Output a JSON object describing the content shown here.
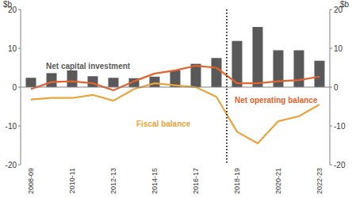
{
  "chart_data": {
    "type": "bar",
    "ylabel": "$b",
    "categories": [
      "2008-09",
      null,
      "2010-11",
      null,
      "2012-13",
      null,
      "2014-15",
      null,
      "2016-17",
      null,
      "2018-19",
      null,
      "2020-21",
      null,
      "2022-23"
    ],
    "ylim": [
      -20,
      20
    ],
    "yticks": [
      -20,
      -10,
      0,
      10,
      20
    ],
    "divider": 9.5,
    "series": [
      {
        "name": "Net capital investment",
        "type": "bar",
        "color": "#595959",
        "values": [
          2.4,
          3.6,
          4.3,
          2.8,
          2.4,
          2.3,
          2.7,
          4.3,
          6.0,
          7.5,
          11.9,
          15.5,
          9.5,
          9.5,
          6.8
        ]
      },
      {
        "name": "Net operating balance",
        "type": "line",
        "color": "#e2632b",
        "values": [
          -0.5,
          1.3,
          1.5,
          1.0,
          -0.8,
          1.5,
          3.5,
          4.3,
          5.5,
          5.0,
          1.0,
          1.0,
          1.5,
          1.8,
          2.7
        ]
      },
      {
        "name": "Fiscal balance",
        "type": "line",
        "color": "#e9a43b",
        "values": [
          -3.2,
          -2.8,
          -2.8,
          -2.0,
          -3.5,
          -0.5,
          1.0,
          0.5,
          0.0,
          -2.5,
          -11.5,
          -14.5,
          -8.8,
          -7.5,
          -4.5
        ]
      }
    ]
  }
}
